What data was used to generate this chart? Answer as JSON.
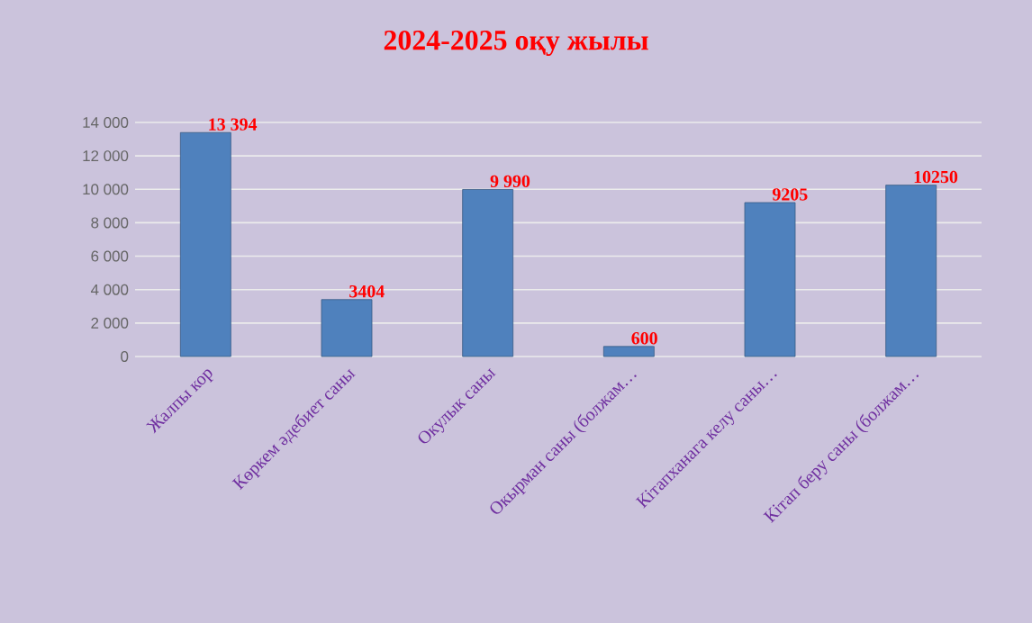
{
  "chart_data": {
    "type": "bar",
    "title": "2024-2025 оқу жылы",
    "categories": [
      "Жалпы кор",
      "Көркем әдебиет саны",
      "Окулык саны",
      "Окырман саны    (болжам…",
      "Кiтапханага  келу саны…",
      "Кiтап  беру саны (болжам…"
    ],
    "values": [
      13394,
      3404,
      9990,
      600,
      9205,
      10250
    ],
    "value_labels": [
      "13 394",
      "3404",
      "9 990",
      "600",
      "9205",
      "10250"
    ],
    "color": "#4f81bd",
    "ylim": [
      0,
      14000
    ],
    "yticks": [
      {
        "value": 0,
        "label": "0"
      },
      {
        "value": 2000,
        "label": "2 000"
      },
      {
        "value": 4000,
        "label": "4 000"
      },
      {
        "value": 6000,
        "label": "6 000"
      },
      {
        "value": 8000,
        "label": "8 000"
      },
      {
        "value": 10000,
        "label": "10 000"
      },
      {
        "value": 12000,
        "label": "12 000"
      },
      {
        "value": 14000,
        "label": "14 000"
      }
    ],
    "grid": "y"
  }
}
